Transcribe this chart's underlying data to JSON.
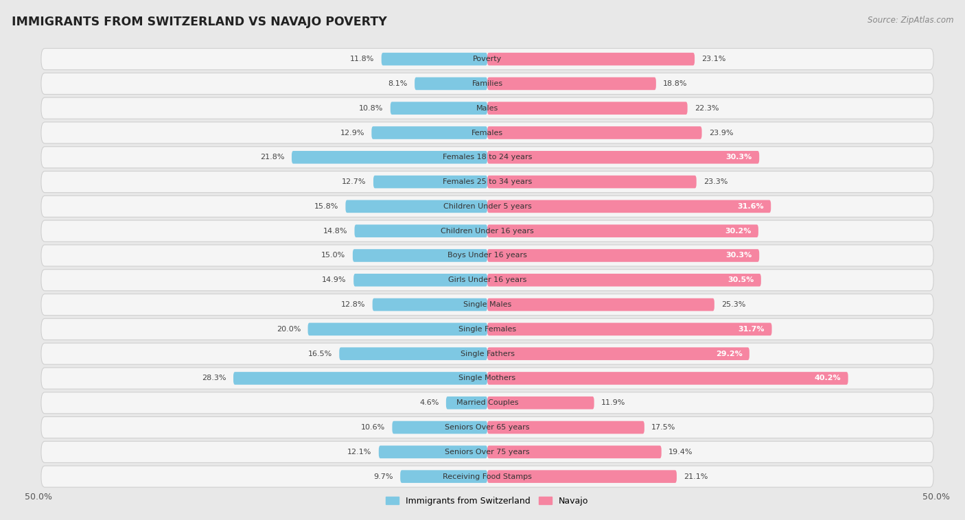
{
  "title": "IMMIGRANTS FROM SWITZERLAND VS NAVAJO POVERTY",
  "source": "Source: ZipAtlas.com",
  "categories": [
    "Poverty",
    "Families",
    "Males",
    "Females",
    "Females 18 to 24 years",
    "Females 25 to 34 years",
    "Children Under 5 years",
    "Children Under 16 years",
    "Boys Under 16 years",
    "Girls Under 16 years",
    "Single Males",
    "Single Females",
    "Single Fathers",
    "Single Mothers",
    "Married Couples",
    "Seniors Over 65 years",
    "Seniors Over 75 years",
    "Receiving Food Stamps"
  ],
  "switzerland_values": [
    11.8,
    8.1,
    10.8,
    12.9,
    21.8,
    12.7,
    15.8,
    14.8,
    15.0,
    14.9,
    12.8,
    20.0,
    16.5,
    28.3,
    4.6,
    10.6,
    12.1,
    9.7
  ],
  "navajo_values": [
    23.1,
    18.8,
    22.3,
    23.9,
    30.3,
    23.3,
    31.6,
    30.2,
    30.3,
    30.5,
    25.3,
    31.7,
    29.2,
    40.2,
    11.9,
    17.5,
    19.4,
    21.1
  ],
  "switzerland_color": "#7ec8e3",
  "navajo_color": "#f685a1",
  "background_color": "#e8e8e8",
  "row_bg_color": "#f5f5f5",
  "row_border_color": "#d0d0d0",
  "axis_limit": 50.0,
  "legend_switzerland": "Immigrants from Switzerland",
  "legend_navajo": "Navajo",
  "value_color_dark": "#444444",
  "value_color_white": "#ffffff",
  "label_color": "#333333"
}
